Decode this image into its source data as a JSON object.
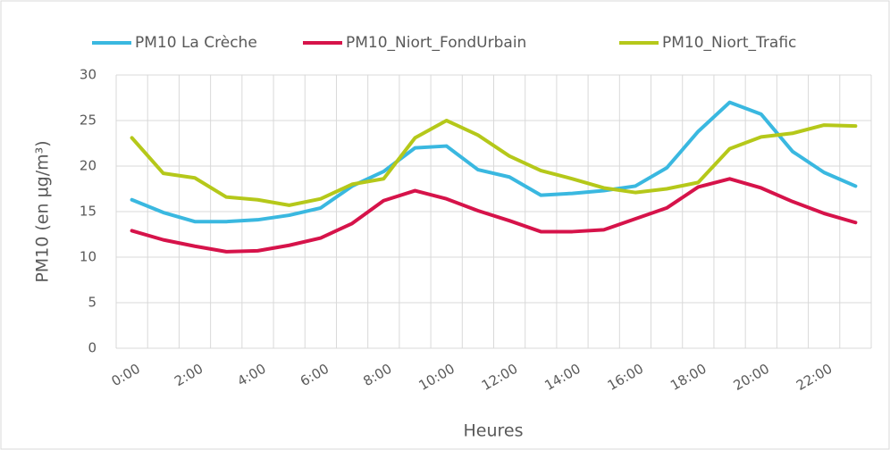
{
  "chart_data": {
    "type": "line",
    "x_label": "Heures",
    "y_label": "PM10 (en µg/m³)",
    "categories": [
      "0:00",
      null,
      "2:00",
      null,
      "4:00",
      null,
      "6:00",
      null,
      "8:00",
      null,
      "10:00",
      null,
      "12:00",
      null,
      "14:00",
      null,
      "16:00",
      null,
      "18:00",
      null,
      "20:00",
      null,
      "22:00",
      null
    ],
    "series": [
      {
        "name": "PM10  La Crèche",
        "color": "#3ab8e0",
        "values": [
          16.3,
          14.9,
          13.9,
          13.9,
          14.1,
          14.6,
          15.4,
          17.8,
          19.4,
          22.0,
          22.2,
          19.6,
          18.8,
          16.8,
          17.0,
          17.3,
          17.8,
          19.8,
          23.8,
          27.0,
          25.7,
          21.6,
          19.3,
          17.8
        ]
      },
      {
        "name": "PM10_Niort_FondUrbain",
        "color": "#d6134a",
        "values": [
          12.9,
          11.9,
          11.2,
          10.6,
          10.7,
          11.3,
          12.1,
          13.7,
          16.2,
          17.3,
          16.4,
          15.1,
          14.0,
          12.8,
          12.8,
          13.0,
          14.2,
          15.4,
          17.7,
          18.6,
          17.6,
          16.1,
          14.8,
          13.8
        ]
      },
      {
        "name": "PM10_Niort_Trafic",
        "color": "#b5c81a",
        "values": [
          23.1,
          19.2,
          18.7,
          16.6,
          16.3,
          15.7,
          16.4,
          18.0,
          18.6,
          23.1,
          25.0,
          23.4,
          21.1,
          19.5,
          18.6,
          17.6,
          17.1,
          17.5,
          18.2,
          21.9,
          23.2,
          23.6,
          24.5,
          24.4
        ]
      }
    ],
    "ylim": [
      0,
      30
    ],
    "yticks": [
      0,
      5,
      10,
      15,
      20,
      25,
      30
    ],
    "grid": true,
    "legend": "top"
  }
}
